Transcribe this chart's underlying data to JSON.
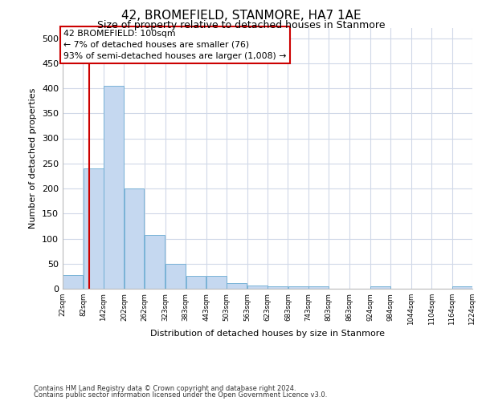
{
  "title": "42, BROMEFIELD, STANMORE, HA7 1AE",
  "subtitle": "Size of property relative to detached houses in Stanmore",
  "xlabel": "Distribution of detached houses by size in Stanmore",
  "ylabel": "Number of detached properties",
  "bar_bins": [
    22,
    82,
    142,
    202,
    262,
    323,
    383,
    443,
    503,
    563,
    623,
    683,
    743,
    803,
    863,
    924,
    984,
    1044,
    1104,
    1164,
    1224
  ],
  "bar_values": [
    27,
    240,
    405,
    200,
    107,
    49,
    25,
    25,
    12,
    7,
    5,
    5,
    5,
    0,
    0,
    5,
    0,
    0,
    0,
    5
  ],
  "bar_color": "#c5d8f0",
  "bar_edge_color": "#6aabd2",
  "vline_x": 100,
  "vline_color": "#cc0000",
  "annotation_text": "42 BROMEFIELD: 100sqm\n← 7% of detached houses are smaller (76)\n93% of semi-detached houses are larger (1,008) →",
  "annotation_box_color": "#ffffff",
  "annotation_box_edge": "#cc0000",
  "ylim": [
    0,
    520
  ],
  "yticks": [
    0,
    50,
    100,
    150,
    200,
    250,
    300,
    350,
    400,
    450,
    500
  ],
  "footer_line1": "Contains HM Land Registry data © Crown copyright and database right 2024.",
  "footer_line2": "Contains public sector information licensed under the Open Government Licence v3.0.",
  "background_color": "#ffffff",
  "plot_bg_color": "#ffffff",
  "grid_color": "#d0d8e8",
  "tick_labels": [
    "22sqm",
    "82sqm",
    "142sqm",
    "202sqm",
    "262sqm",
    "323sqm",
    "383sqm",
    "443sqm",
    "503sqm",
    "563sqm",
    "623sqm",
    "683sqm",
    "743sqm",
    "803sqm",
    "863sqm",
    "924sqm",
    "984sqm",
    "1044sqm",
    "1104sqm",
    "1164sqm",
    "1224sqm"
  ]
}
